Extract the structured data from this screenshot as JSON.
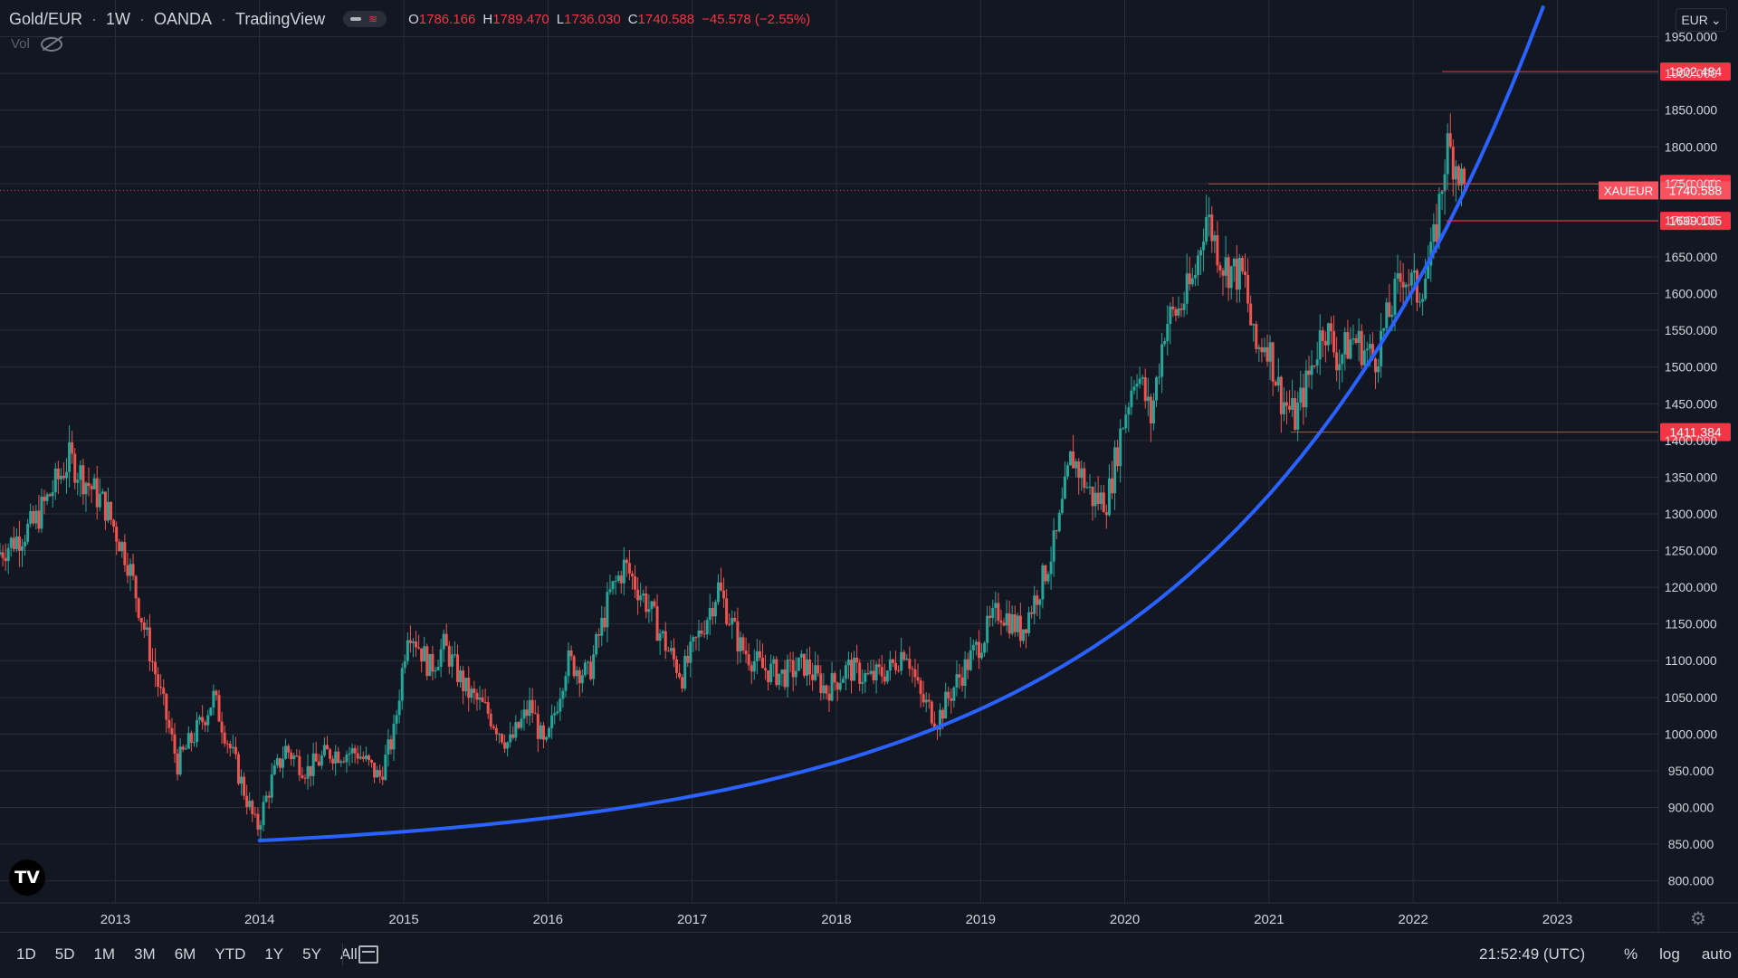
{
  "header": {
    "symbol": "Gold/EUR",
    "interval": "1W",
    "exchange": "OANDA",
    "platform": "TradingView",
    "ohlc": {
      "o_label": "O",
      "o": "1786.166",
      "h_label": "H",
      "h": "1789.470",
      "l_label": "L",
      "l": "1736.030",
      "c_label": "C",
      "c": "1740.588",
      "change": "−45.578 (−2.55%)"
    },
    "vol_label": "Vol",
    "currency_button": "EUR"
  },
  "chart_data": {
    "type": "candlestick",
    "x_axis_labels": [
      "2013",
      "2014",
      "2015",
      "2016",
      "2017",
      "2018",
      "2019",
      "2020",
      "2021",
      "2022",
      "2023"
    ],
    "x_range": [
      2012.2,
      2023.7
    ],
    "y_ticks": [
      "800.000",
      "850.000",
      "900.000",
      "950.000",
      "1000.000",
      "1050.000",
      "1100.000",
      "1150.000",
      "1200.000",
      "1250.000",
      "1300.000",
      "1350.000",
      "1400.000",
      "1450.000",
      "1500.000",
      "1550.000",
      "1600.000",
      "1650.000",
      "1700.000",
      "1750.000",
      "1800.000",
      "1850.000",
      "1900.000",
      "1950.000"
    ],
    "y_range": [
      770,
      2000
    ],
    "price_path": [
      [
        2012.2,
        1245
      ],
      [
        2012.45,
        1285
      ],
      [
        2012.7,
        1375
      ],
      [
        2012.95,
        1310
      ],
      [
        2013.1,
        1240
      ],
      [
        2013.25,
        1120
      ],
      [
        2013.45,
        960
      ],
      [
        2013.6,
        1010
      ],
      [
        2013.7,
        1050
      ],
      [
        2013.85,
        960
      ],
      [
        2014.0,
        870
      ],
      [
        2014.1,
        935
      ],
      [
        2014.2,
        980
      ],
      [
        2014.35,
        950
      ],
      [
        2014.5,
        975
      ],
      [
        2014.7,
        975
      ],
      [
        2014.85,
        940
      ],
      [
        2014.95,
        1000
      ],
      [
        2015.05,
        1150
      ],
      [
        2015.2,
        1090
      ],
      [
        2015.3,
        1120
      ],
      [
        2015.45,
        1060
      ],
      [
        2015.6,
        1030
      ],
      [
        2015.75,
        985
      ],
      [
        2015.9,
        1040
      ],
      [
        2016.0,
        975
      ],
      [
        2016.15,
        1100
      ],
      [
        2016.3,
        1080
      ],
      [
        2016.45,
        1190
      ],
      [
        2016.55,
        1230
      ],
      [
        2016.7,
        1180
      ],
      [
        2016.85,
        1115
      ],
      [
        2016.95,
        1080
      ],
      [
        2017.1,
        1150
      ],
      [
        2017.2,
        1200
      ],
      [
        2017.35,
        1120
      ],
      [
        2017.5,
        1090
      ],
      [
        2017.65,
        1080
      ],
      [
        2017.8,
        1095
      ],
      [
        2017.95,
        1060
      ],
      [
        2018.1,
        1090
      ],
      [
        2018.25,
        1075
      ],
      [
        2018.4,
        1090
      ],
      [
        2018.5,
        1120
      ],
      [
        2018.6,
        1050
      ],
      [
        2018.72,
        1020
      ],
      [
        2018.85,
        1070
      ],
      [
        2019.0,
        1120
      ],
      [
        2019.15,
        1170
      ],
      [
        2019.3,
        1140
      ],
      [
        2019.45,
        1210
      ],
      [
        2019.55,
        1270
      ],
      [
        2019.65,
        1380
      ],
      [
        2019.8,
        1320
      ],
      [
        2019.9,
        1320
      ],
      [
        2020.0,
        1420
      ],
      [
        2020.1,
        1500
      ],
      [
        2020.2,
        1430
      ],
      [
        2020.3,
        1560
      ],
      [
        2020.4,
        1580
      ],
      [
        2020.5,
        1620
      ],
      [
        2020.58,
        1710
      ],
      [
        2020.7,
        1640
      ],
      [
        2020.85,
        1620
      ],
      [
        2020.92,
        1520
      ],
      [
        2021.0,
        1540
      ],
      [
        2021.1,
        1460
      ],
      [
        2021.2,
        1430
      ],
      [
        2021.3,
        1490
      ],
      [
        2021.4,
        1560
      ],
      [
        2021.5,
        1510
      ],
      [
        2021.6,
        1540
      ],
      [
        2021.75,
        1510
      ],
      [
        2021.85,
        1570
      ],
      [
        2021.95,
        1630
      ],
      [
        2022.05,
        1600
      ],
      [
        2022.15,
        1650
      ],
      [
        2022.2,
        1720
      ],
      [
        2022.25,
        1800
      ],
      [
        2022.32,
        1780
      ],
      [
        2022.37,
        1740
      ]
    ],
    "curve": {
      "color": "#2962ff",
      "from": [
        2014.0,
        855
      ],
      "to": [
        2022.9,
        1990
      ]
    },
    "levels": [
      {
        "label": "1902.484",
        "value": 1902.484,
        "from": 2022.2
      },
      {
        "label": "1749.426",
        "value": 1749.426,
        "from": 2020.58
      },
      {
        "label": "1699.105",
        "value": 1699.105,
        "from": 2022.23
      },
      {
        "label": "1411.384",
        "value": 1411.384,
        "from": 2021.15
      }
    ],
    "last_price": {
      "symbol": "XAUEUR",
      "label": "1740.588",
      "value": 1740.588
    },
    "colors": {
      "up": "#26a69a",
      "down": "#ef5350",
      "level": "#f23645",
      "grid": "#2a2e39",
      "bg": "#131722"
    },
    "scale_mode": "auto"
  },
  "bottom_bar": {
    "ranges": [
      "1D",
      "5D",
      "1M",
      "3M",
      "6M",
      "YTD",
      "1Y",
      "5Y",
      "All"
    ],
    "time": "21:52:49 (UTC)",
    "percent_label": "%",
    "log_label": "log",
    "auto_label": "auto"
  },
  "icons": {
    "logo": "tradingview-logo-icon",
    "settings": "gear-icon",
    "hide": "eye-off-icon",
    "calendar": "calendar-icon"
  }
}
